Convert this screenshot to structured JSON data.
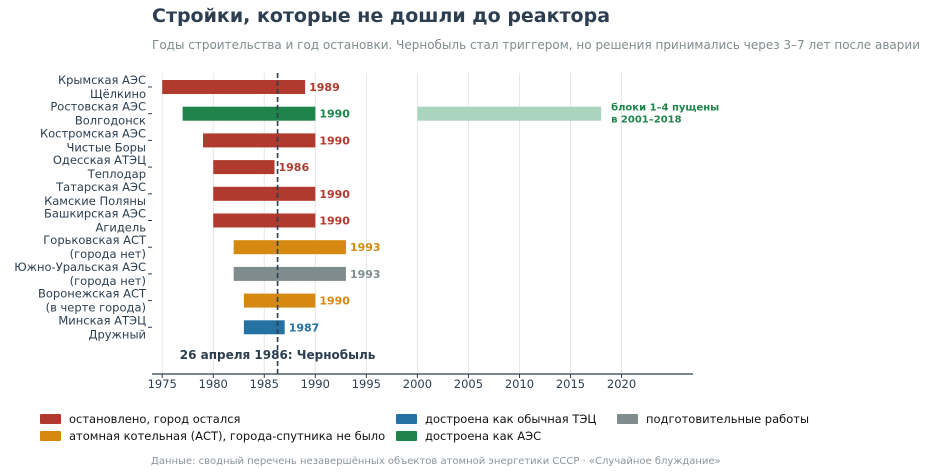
{
  "title": "Стройки, которые не дошли до реактора",
  "subtitle": "Годы строительства и год остановки. Чернобыль стал триггером, но решения принимались через 3–7 лет после аварии",
  "source": "Данные: сводный перечень незавершённых объектов атомной энергетики СССР  ·  «Случайное блуждание»",
  "colors": {
    "stopped": "#b03a2e",
    "ast": "#d68910",
    "tec": "#2471a3",
    "prep": "#7f8c8d",
    "aes": "#1e8449",
    "aes_light": "#a9d5bf",
    "axis": "#2c3e50",
    "grid": "#e6e6e6"
  },
  "legend": [
    {
      "key": "stopped",
      "label": "остановлено, город остался"
    },
    {
      "key": "ast",
      "label": "атомная котельная (АСТ), города-спутника не было"
    },
    {
      "key": "tec",
      "label": "достроена как обычная ТЭЦ"
    },
    {
      "key": "aes",
      "label": "достроена как АЭС"
    },
    {
      "key": "prep",
      "label": "подготовительные работы"
    }
  ],
  "chart_data": {
    "type": "bar",
    "orientation": "horizontal-range",
    "title": "Стройки, которые не дошли до реактора",
    "xlim": [
      1974,
      2027
    ],
    "xticks": [
      1975,
      1980,
      1985,
      1990,
      1995,
      2000,
      2005,
      2010,
      2015,
      2020
    ],
    "grid": true,
    "legend_position": "bottom",
    "event": {
      "year": 1986.3,
      "label": "26 апреля 1986: Чернобыль"
    },
    "rows": [
      {
        "name": "Крымская АЭС",
        "city": "Щёлкино",
        "start": 1975,
        "end": 1989,
        "category": "stopped",
        "label": "1989"
      },
      {
        "name": "Ростовская АЭС",
        "city": "Волгодонск",
        "start": 1977,
        "end": 1990,
        "category": "aes",
        "label": "1990",
        "extra": {
          "start": 2000,
          "end": 2018,
          "note": "блоки 1–4 пущены\nв 2001–2018"
        }
      },
      {
        "name": "Костромская АЭС",
        "city": "Чистые Боры",
        "start": 1979,
        "end": 1990,
        "category": "stopped",
        "label": "1990"
      },
      {
        "name": "Одесская АТЭЦ",
        "city": "Теплодар",
        "start": 1980,
        "end": 1986,
        "category": "stopped",
        "label": "1986"
      },
      {
        "name": "Татарская АЭС",
        "city": "Камские Поляны",
        "start": 1980,
        "end": 1990,
        "category": "stopped",
        "label": "1990"
      },
      {
        "name": "Башкирская АЭС",
        "city": "Агидель",
        "start": 1980,
        "end": 1990,
        "category": "stopped",
        "label": "1990"
      },
      {
        "name": "Горьковская АСТ",
        "city": "(города нет)",
        "start": 1982,
        "end": 1993,
        "category": "ast",
        "label": "1993"
      },
      {
        "name": "Южно-Уральская АЭС",
        "city": "(города нет)",
        "start": 1982,
        "end": 1993,
        "category": "prep",
        "label": "1993"
      },
      {
        "name": "Воронежская АСТ",
        "city": "(в черте города)",
        "start": 1983,
        "end": 1990,
        "category": "ast",
        "label": "1990"
      },
      {
        "name": "Минская АТЭЦ",
        "city": "Дружный",
        "start": 1983,
        "end": 1987,
        "category": "tec",
        "label": "1987"
      }
    ]
  }
}
